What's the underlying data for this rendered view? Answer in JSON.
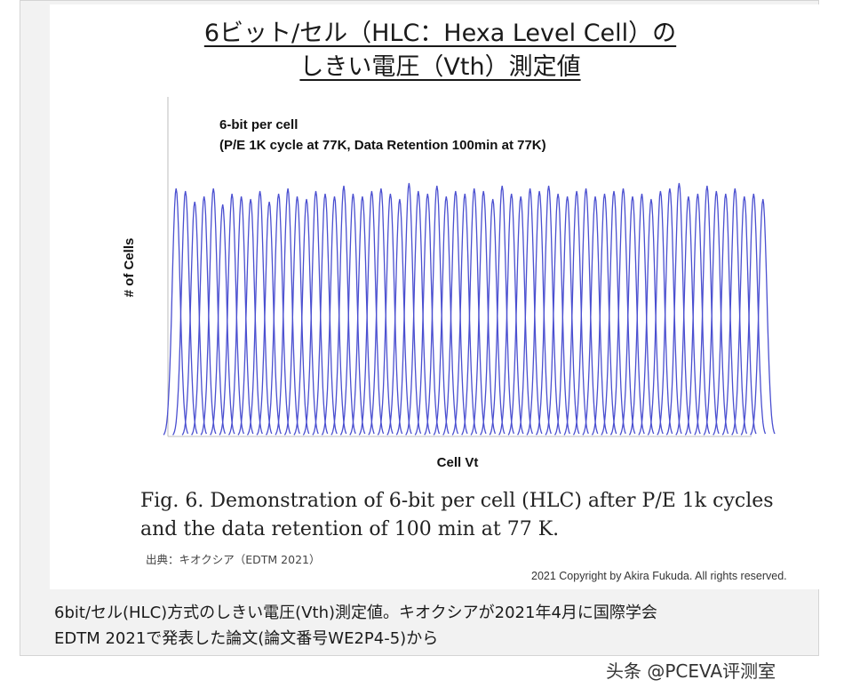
{
  "slide": {
    "title_line1": "6ビット/セル（HLC：Hexa Level Cell）の",
    "title_line2": "しきい電圧（Vth）測定値"
  },
  "chart_data": {
    "type": "line",
    "chart_title_line1": "6-bit per cell",
    "chart_title_line2": "(P/E 1K cycle at 77K, Data Retention 100min at 77K)",
    "xlabel": "Cell Vt",
    "ylabel": "# of Cells",
    "x_tick_labels": [],
    "y_tick_labels": [],
    "grid": false,
    "legend": "none",
    "series_color": "#4a4fd0",
    "distribution_count": 64,
    "peak_heights": [
      0.93,
      0.92,
      0.88,
      0.9,
      0.93,
      0.87,
      0.91,
      0.9,
      0.89,
      0.92,
      0.88,
      0.91,
      0.93,
      0.9,
      0.89,
      0.92,
      0.91,
      0.9,
      0.94,
      0.91,
      0.9,
      0.92,
      0.93,
      0.91,
      0.89,
      0.95,
      0.92,
      0.91,
      0.94,
      0.9,
      0.92,
      0.91,
      0.93,
      0.92,
      0.89,
      0.94,
      0.91,
      0.9,
      0.93,
      0.92,
      0.94,
      0.91,
      0.9,
      0.92,
      0.93,
      0.9,
      0.91,
      0.92,
      0.93,
      0.9,
      0.91,
      0.89,
      0.92,
      0.93,
      0.95,
      0.9,
      0.91,
      0.94,
      0.92,
      0.91,
      0.93,
      0.9,
      0.91,
      0.89
    ]
  },
  "figure_caption": {
    "line1": "Fig. 6. Demonstration of 6-bit per cell (HLC) after P/E 1k cycles",
    "line2": "and the data retention of 100 min at 77 K."
  },
  "source_text": "出典：キオクシア（EDTM 2021）",
  "copyright_text": "2021 Copyright by Akira Fukuda. All rights reserved.",
  "photo_caption": {
    "line1": "6bit/セル(HLC)方式のしきい電圧(Vth)測定値。キオクシアが2021年4月に国際学会",
    "line2": "EDTM 2021で発表した論文(論文番号WE2P4-5)から"
  },
  "watermark": "头条 @PCEVA评测室"
}
